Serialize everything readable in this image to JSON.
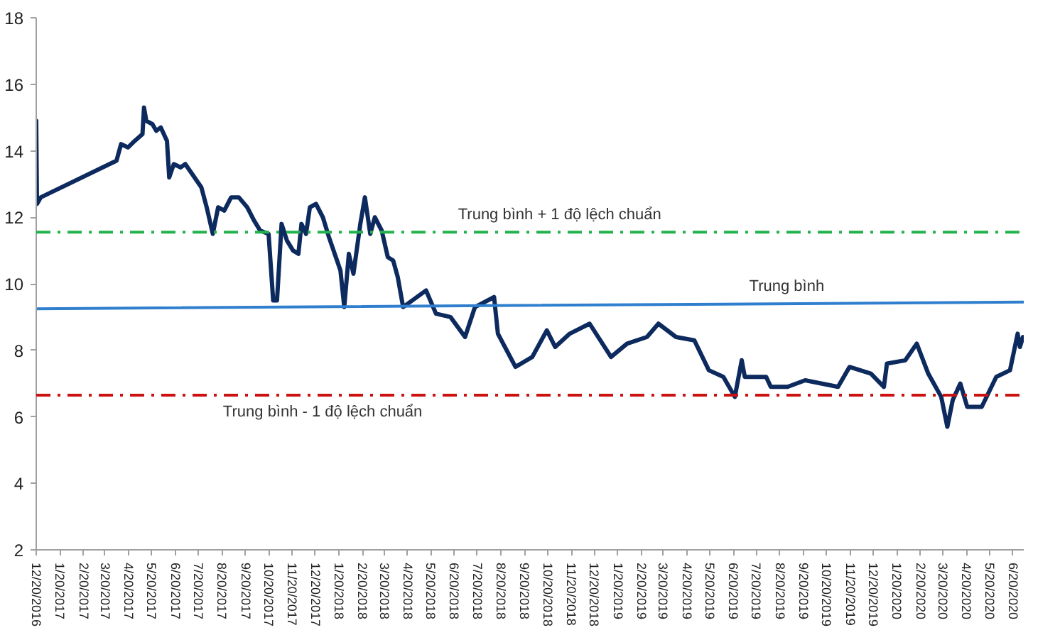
{
  "chart_data": {
    "type": "line",
    "x": [
      "2016-12-20",
      "2016-12-21",
      "2016-12-26",
      "2017-04-04",
      "2017-04-10",
      "2017-04-19",
      "2017-04-28",
      "2017-05-08",
      "2017-05-10",
      "2017-05-13",
      "2017-05-21",
      "2017-05-26",
      "2017-06-01",
      "2017-06-09",
      "2017-06-12",
      "2017-06-18",
      "2017-06-27",
      "2017-07-03",
      "2017-07-12",
      "2017-07-24",
      "2017-07-31",
      "2017-08-08",
      "2017-08-15",
      "2017-08-23",
      "2017-09-01",
      "2017-09-11",
      "2017-09-22",
      "2017-10-01",
      "2017-10-09",
      "2017-10-20",
      "2017-10-26",
      "2017-10-31",
      "2017-11-06",
      "2017-11-13",
      "2017-11-21",
      "2017-11-28",
      "2017-12-02",
      "2017-12-08",
      "2017-12-13",
      "2017-12-21",
      "2017-12-30",
      "2018-01-07",
      "2018-01-16",
      "2018-01-22",
      "2018-01-27",
      "2018-02-02",
      "2018-02-08",
      "2018-02-17",
      "2018-02-23",
      "2018-03-02",
      "2018-03-08",
      "2018-03-17",
      "2018-03-25",
      "2018-04-01",
      "2018-04-07",
      "2018-04-14",
      "2018-05-14",
      "2018-05-27",
      "2018-06-15",
      "2018-07-04",
      "2018-07-17",
      "2018-08-11",
      "2018-08-16",
      "2018-09-08",
      "2018-09-30",
      "2018-10-19",
      "2018-10-30",
      "2018-11-18",
      "2018-12-14",
      "2019-01-11",
      "2019-02-01",
      "2019-02-27",
      "2019-03-14",
      "2019-04-06",
      "2019-04-30",
      "2019-05-19",
      "2019-06-07",
      "2019-06-22",
      "2019-07-01",
      "2019-07-05",
      "2019-08-02",
      "2019-08-08",
      "2019-08-30",
      "2019-09-22",
      "2019-11-04",
      "2019-11-19",
      "2019-12-17",
      "2020-01-03",
      "2020-01-07",
      "2020-01-31",
      "2020-02-15",
      "2020-03-01",
      "2020-03-18",
      "2020-03-26",
      "2020-04-02",
      "2020-04-12",
      "2020-04-21",
      "2020-05-10",
      "2020-05-29",
      "2020-06-16",
      "2020-06-26",
      "2020-06-29",
      "2020-07-03"
    ],
    "series": [
      {
        "color": "#0d2a5e",
        "values": [
          14.9,
          12.4,
          12.6,
          13.7,
          14.2,
          14.1,
          14.3,
          14.5,
          15.3,
          14.9,
          14.8,
          14.6,
          14.7,
          14.3,
          13.2,
          13.6,
          13.5,
          13.6,
          13.3,
          12.9,
          12.3,
          11.5,
          12.3,
          12.2,
          12.6,
          12.6,
          12.3,
          11.9,
          11.6,
          11.5,
          9.5,
          9.5,
          11.8,
          11.3,
          11.0,
          10.9,
          11.8,
          11.5,
          12.3,
          12.4,
          12.0,
          11.4,
          10.8,
          10.4,
          9.3,
          10.9,
          10.3,
          11.8,
          12.6,
          11.5,
          12.0,
          11.6,
          10.8,
          10.7,
          10.2,
          9.3,
          9.8,
          9.1,
          9.0,
          8.4,
          9.3,
          9.6,
          8.5,
          7.5,
          7.8,
          8.6,
          8.1,
          8.5,
          8.8,
          7.8,
          8.2,
          8.4,
          8.8,
          8.4,
          8.3,
          7.4,
          7.2,
          6.6,
          7.7,
          7.2,
          7.2,
          6.9,
          6.9,
          7.1,
          6.9,
          7.5,
          7.3,
          6.9,
          7.6,
          7.7,
          8.2,
          7.3,
          6.6,
          5.7,
          6.5,
          7.0,
          6.3,
          6.3,
          7.2,
          7.4,
          8.5,
          8.1,
          8.4
        ]
      },
      {
        "name": "Trung bình",
        "color": "#2f7fce",
        "x": [
          "2016-12-20",
          "2020-07-04"
        ],
        "values": [
          9.25,
          9.45
        ]
      }
    ],
    "ref_lines": [
      {
        "axis": "y",
        "value": 11.55,
        "label": "Trung bình + 1 độ lệch chuẩn",
        "color": "#22b24c",
        "line_style": "dashdot"
      },
      {
        "axis": "y",
        "value": 6.65,
        "label": "Trung bình - 1 độ lệch chuẩn",
        "color": "#cc1111",
        "line_style": "dashdot"
      }
    ],
    "xlim": [
      "2016-12-20",
      "2020-07-04"
    ],
    "ylim": [
      2,
      18
    ],
    "yticks": [
      2,
      4,
      6,
      8,
      10,
      12,
      14,
      16,
      18
    ],
    "xticks": [
      {
        "value": "2016-12-20",
        "label": "12/20/2016"
      },
      {
        "value": "2017-01-20",
        "label": "1/20/2017"
      },
      {
        "value": "2017-02-20",
        "label": "2/20/2017"
      },
      {
        "value": "2017-03-20",
        "label": "3/20/2017"
      },
      {
        "value": "2017-04-20",
        "label": "4/20/2017"
      },
      {
        "value": "2017-05-20",
        "label": "5/20/2017"
      },
      {
        "value": "2017-06-20",
        "label": "6/20/2017"
      },
      {
        "value": "2017-07-20",
        "label": "7/20/2017"
      },
      {
        "value": "2017-08-20",
        "label": "8/20/2017"
      },
      {
        "value": "2017-09-20",
        "label": "9/20/2017"
      },
      {
        "value": "2017-10-20",
        "label": "10/20/2017"
      },
      {
        "value": "2017-11-20",
        "label": "11/20/2017"
      },
      {
        "value": "2017-12-20",
        "label": "12/20/2017"
      },
      {
        "value": "2018-01-20",
        "label": "1/20/2018"
      },
      {
        "value": "2018-02-20",
        "label": "2/20/2018"
      },
      {
        "value": "2018-03-20",
        "label": "3/20/2018"
      },
      {
        "value": "2018-04-20",
        "label": "4/20/2018"
      },
      {
        "value": "2018-05-20",
        "label": "5/20/2018"
      },
      {
        "value": "2018-06-20",
        "label": "6/20/2018"
      },
      {
        "value": "2018-07-20",
        "label": "7/20/2018"
      },
      {
        "value": "2018-08-20",
        "label": "8/20/2018"
      },
      {
        "value": "2018-09-20",
        "label": "9/20/2018"
      },
      {
        "value": "2018-10-20",
        "label": "10/20/2018"
      },
      {
        "value": "2018-11-20",
        "label": "11/20/2018"
      },
      {
        "value": "2018-12-20",
        "label": "12/20/2018"
      },
      {
        "value": "2019-01-20",
        "label": "1/20/2019"
      },
      {
        "value": "2019-02-20",
        "label": "2/20/2019"
      },
      {
        "value": "2019-03-20",
        "label": "3/20/2019"
      },
      {
        "value": "2019-04-20",
        "label": "4/20/2019"
      },
      {
        "value": "2019-05-20",
        "label": "5/20/2019"
      },
      {
        "value": "2019-06-20",
        "label": "6/20/2019"
      },
      {
        "value": "2019-07-20",
        "label": "7/20/2019"
      },
      {
        "value": "2019-08-20",
        "label": "8/20/2019"
      },
      {
        "value": "2019-09-20",
        "label": "9/20/2019"
      },
      {
        "value": "2019-10-20",
        "label": "10/20/2019"
      },
      {
        "value": "2019-11-20",
        "label": "11/20/2019"
      },
      {
        "value": "2019-12-20",
        "label": "12/20/2019"
      },
      {
        "value": "2020-01-20",
        "label": "1/20/2020"
      },
      {
        "value": "2020-02-20",
        "label": "2/20/2020"
      },
      {
        "value": "2020-03-20",
        "label": "3/20/2020"
      },
      {
        "value": "2020-04-20",
        "label": "4/20/2020"
      },
      {
        "value": "2020-05-20",
        "label": "5/20/2020"
      },
      {
        "value": "2020-06-20",
        "label": "6/20/2020"
      }
    ],
    "grid": false,
    "legend": false
  }
}
